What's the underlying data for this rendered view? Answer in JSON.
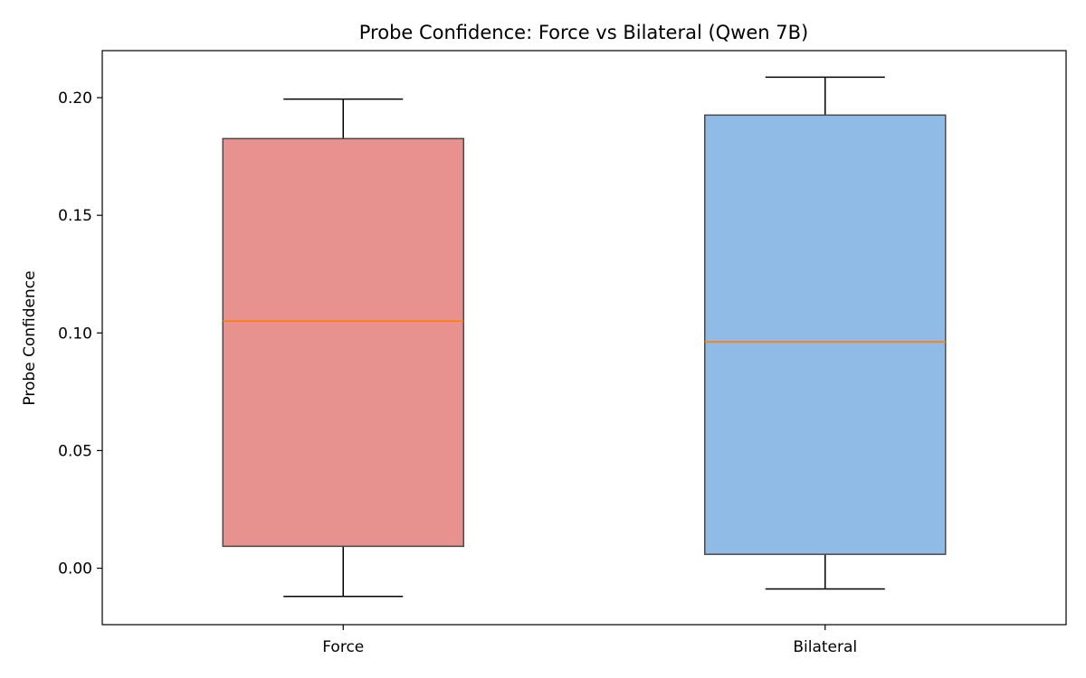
{
  "chart_data": {
    "type": "box",
    "title": "Probe Confidence: Force vs Bilateral (Qwen 7B)",
    "xlabel": "",
    "ylabel": "Probe Confidence",
    "ylim": [
      -0.024,
      0.22
    ],
    "yticks": [
      "0.00",
      "0.05",
      "0.10",
      "0.15",
      "0.20"
    ],
    "grid": false,
    "categories": [
      "Force",
      "Bilateral"
    ],
    "boxes": [
      {
        "name": "Force",
        "whisker_low": -0.012,
        "q1": 0.0093,
        "median": 0.105,
        "q3": 0.1826,
        "whisker_high": 0.1994,
        "color": "#e89290"
      },
      {
        "name": "Bilateral",
        "whisker_low": -0.0088,
        "q1": 0.0059,
        "median": 0.0962,
        "q3": 0.1926,
        "whisker_high": 0.2087,
        "color": "#90bbe6"
      }
    ],
    "median_color": "#ff7f0e",
    "box_edge_color": "#4a4a4a"
  }
}
